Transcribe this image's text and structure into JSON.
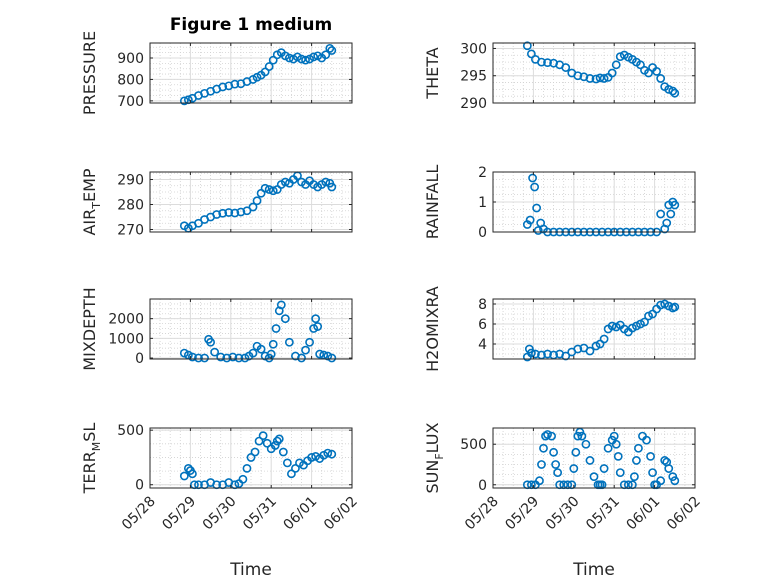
{
  "figure": {
    "title": "Figure 1 medium",
    "xlabel": "Time",
    "xticks": [
      "05/28",
      "05/29",
      "05/30",
      "05/31",
      "06/01",
      "06/02"
    ],
    "marker_color": "#0072BD"
  },
  "chart_data": [
    {
      "type": "scatter",
      "ylabel": "PRESSURE",
      "ylim": [
        690,
        970
      ],
      "yticks": [
        "700",
        "800",
        "900"
      ],
      "ytick_values": [
        700,
        800,
        900
      ],
      "x": [
        0.85,
        0.95,
        1.05,
        1.2,
        1.35,
        1.5,
        1.65,
        1.8,
        1.95,
        2.1,
        2.25,
        2.4,
        2.55,
        2.65,
        2.75,
        2.85,
        2.95,
        3.05,
        3.15,
        3.25,
        3.35,
        3.45,
        3.55,
        3.65,
        3.75,
        3.85,
        3.95,
        4.05,
        4.15,
        4.25,
        4.35,
        4.45,
        4.5
      ],
      "values": [
        700,
        705,
        712,
        725,
        735,
        745,
        755,
        765,
        770,
        778,
        780,
        790,
        800,
        810,
        820,
        835,
        860,
        890,
        915,
        925,
        910,
        900,
        895,
        905,
        895,
        890,
        895,
        905,
        910,
        900,
        915,
        945,
        935
      ]
    },
    {
      "type": "scatter",
      "ylabel": "THETA",
      "ylim": [
        290,
        301
      ],
      "yticks": [
        "290",
        "295",
        "300"
      ],
      "ytick_values": [
        290,
        295,
        300
      ],
      "x": [
        0.85,
        0.95,
        1.05,
        1.2,
        1.35,
        1.5,
        1.65,
        1.8,
        1.95,
        2.1,
        2.25,
        2.4,
        2.55,
        2.65,
        2.75,
        2.85,
        2.95,
        3.05,
        3.15,
        3.25,
        3.35,
        3.45,
        3.55,
        3.65,
        3.75,
        3.85,
        3.95,
        4.05,
        4.15,
        4.25,
        4.35,
        4.45,
        4.5
      ],
      "values": [
        300.5,
        299,
        298,
        297.5,
        297.4,
        297.3,
        297,
        296.5,
        295.5,
        295,
        294.8,
        294.5,
        294.4,
        294.6,
        294.5,
        294.7,
        295.5,
        297,
        298.5,
        298.8,
        298.4,
        298,
        297.5,
        297,
        296,
        295.5,
        296.5,
        295.8,
        294.5,
        293,
        292.5,
        292.2,
        291.8
      ]
    },
    {
      "type": "scatter",
      "ylabel": "AIR_TEMP",
      "ylim": [
        269,
        293
      ],
      "yticks": [
        "270",
        "280",
        "290"
      ],
      "ytick_values": [
        270,
        280,
        290
      ],
      "x": [
        0.85,
        0.95,
        1.05,
        1.2,
        1.35,
        1.5,
        1.65,
        1.8,
        1.95,
        2.1,
        2.25,
        2.4,
        2.55,
        2.65,
        2.75,
        2.85,
        2.95,
        3.05,
        3.15,
        3.25,
        3.35,
        3.45,
        3.55,
        3.65,
        3.75,
        3.85,
        3.95,
        4.05,
        4.15,
        4.25,
        4.35,
        4.45,
        4.5
      ],
      "values": [
        271.5,
        270.5,
        271.5,
        272.5,
        274,
        275,
        276,
        276.5,
        276.8,
        276.6,
        277,
        277.5,
        279,
        281.5,
        284.5,
        286.5,
        286,
        285.5,
        286,
        288,
        289,
        288.5,
        290,
        291.5,
        289,
        288,
        289.5,
        288,
        287,
        288,
        289,
        288.5,
        287
      ]
    },
    {
      "type": "scatter",
      "ylabel": "RAINFALL",
      "ylim": [
        0,
        2
      ],
      "yticks": [
        "0",
        "1",
        "2"
      ],
      "ytick_values": [
        0,
        1,
        2
      ],
      "x": [
        0.85,
        0.92,
        0.98,
        1.03,
        1.08,
        1.12,
        1.18,
        1.25,
        1.35,
        1.5,
        1.65,
        1.8,
        1.95,
        2.1,
        2.25,
        2.4,
        2.55,
        2.7,
        2.85,
        3.0,
        3.15,
        3.3,
        3.45,
        3.6,
        3.75,
        3.9,
        4.05,
        4.15,
        4.25,
        4.3,
        4.35,
        4.4,
        4.45,
        4.5
      ],
      "values": [
        0.25,
        0.4,
        1.8,
        1.5,
        0.8,
        0.05,
        0.3,
        0.1,
        0,
        0,
        0,
        0,
        0,
        0,
        0,
        0,
        0,
        0,
        0,
        0,
        0,
        0,
        0,
        0,
        0,
        0,
        0,
        0.6,
        0.1,
        0.3,
        0.9,
        0.6,
        1.0,
        0.9
      ]
    },
    {
      "type": "scatter",
      "ylabel": "MIXDEPTH",
      "ylim": [
        -50,
        3000
      ],
      "yticks": [
        "0",
        "1000",
        "2000"
      ],
      "ytick_values": [
        0,
        1000,
        2000
      ],
      "x": [
        0.85,
        0.95,
        1.05,
        1.2,
        1.35,
        1.45,
        1.5,
        1.6,
        1.75,
        1.9,
        2.05,
        2.2,
        2.35,
        2.45,
        2.55,
        2.65,
        2.75,
        2.85,
        2.95,
        3.0,
        3.05,
        3.12,
        3.2,
        3.25,
        3.35,
        3.45,
        3.6,
        3.75,
        3.85,
        3.95,
        4.05,
        4.1,
        4.15,
        4.2,
        4.3,
        4.4,
        4.5
      ],
      "values": [
        250,
        150,
        50,
        0,
        0,
        950,
        800,
        300,
        50,
        0,
        50,
        0,
        0,
        100,
        250,
        600,
        450,
        100,
        0,
        200,
        700,
        1500,
        2400,
        2700,
        2000,
        800,
        100,
        0,
        400,
        800,
        1500,
        2000,
        1600,
        200,
        150,
        100,
        0
      ]
    },
    {
      "type": "scatter",
      "ylabel": "H2OMIXRA",
      "ylim": [
        2.5,
        8.5
      ],
      "yticks": [
        "4",
        "6",
        "8"
      ],
      "ytick_values": [
        4,
        6,
        8
      ],
      "x": [
        0.85,
        0.9,
        0.95,
        1.05,
        1.2,
        1.35,
        1.5,
        1.65,
        1.8,
        1.95,
        2.1,
        2.25,
        2.4,
        2.55,
        2.65,
        2.75,
        2.85,
        2.95,
        3.05,
        3.15,
        3.25,
        3.35,
        3.45,
        3.55,
        3.65,
        3.75,
        3.85,
        3.95,
        4.05,
        4.15,
        4.25,
        4.35,
        4.45,
        4.5
      ],
      "values": [
        2.7,
        3.5,
        3.1,
        3.0,
        2.9,
        3.0,
        2.9,
        3.0,
        2.8,
        3.2,
        3.5,
        3.6,
        3.3,
        3.8,
        4.0,
        4.5,
        5.5,
        5.8,
        5.7,
        5.9,
        5.5,
        5.2,
        5.6,
        5.8,
        6.0,
        6.2,
        6.8,
        7.0,
        7.5,
        7.9,
        8.0,
        7.8,
        7.6,
        7.7
      ]
    },
    {
      "type": "scatter",
      "ylabel": "TERR_MSL",
      "ylim": [
        -30,
        520
      ],
      "yticks": [
        "0",
        "500"
      ],
      "ytick_values": [
        0,
        500
      ],
      "x": [
        0.85,
        0.95,
        1.0,
        1.05,
        1.1,
        1.2,
        1.35,
        1.5,
        1.65,
        1.8,
        1.95,
        2.1,
        2.2,
        2.3,
        2.4,
        2.5,
        2.6,
        2.7,
        2.8,
        2.9,
        3.0,
        3.1,
        3.15,
        3.2,
        3.3,
        3.4,
        3.5,
        3.6,
        3.7,
        3.8,
        3.9,
        4.0,
        4.1,
        4.2,
        4.3,
        4.4,
        4.5
      ],
      "values": [
        80,
        150,
        130,
        100,
        0,
        0,
        0,
        20,
        0,
        0,
        20,
        0,
        10,
        50,
        150,
        250,
        300,
        400,
        450,
        380,
        330,
        360,
        400,
        420,
        300,
        200,
        100,
        150,
        200,
        180,
        220,
        250,
        260,
        240,
        270,
        290,
        280
      ]
    },
    {
      "type": "scatter",
      "ylabel": "SUN_FLUX",
      "ylim": [
        -40,
        700
      ],
      "yticks": [
        "0",
        "500"
      ],
      "ytick_values": [
        0,
        500
      ],
      "x": [
        0.85,
        0.95,
        1.05,
        1.15,
        1.2,
        1.25,
        1.3,
        1.35,
        1.45,
        1.5,
        1.55,
        1.6,
        1.65,
        1.75,
        1.85,
        1.95,
        2.0,
        2.05,
        2.1,
        2.15,
        2.2,
        2.3,
        2.4,
        2.5,
        2.6,
        2.65,
        2.7,
        2.75,
        2.85,
        2.95,
        3.0,
        3.05,
        3.1,
        3.15,
        3.25,
        3.35,
        3.45,
        3.5,
        3.55,
        3.6,
        3.7,
        3.8,
        3.9,
        3.95,
        4.0,
        4.05,
        4.15,
        4.25,
        4.3,
        4.35,
        4.45,
        4.5
      ],
      "values": [
        0,
        0,
        0,
        50,
        250,
        450,
        600,
        620,
        600,
        400,
        250,
        150,
        0,
        0,
        0,
        0,
        200,
        400,
        600,
        650,
        600,
        500,
        300,
        100,
        0,
        0,
        0,
        200,
        450,
        550,
        600,
        500,
        350,
        150,
        0,
        0,
        0,
        100,
        300,
        450,
        600,
        550,
        350,
        150,
        0,
        0,
        50,
        300,
        280,
        200,
        100,
        50
      ]
    }
  ]
}
